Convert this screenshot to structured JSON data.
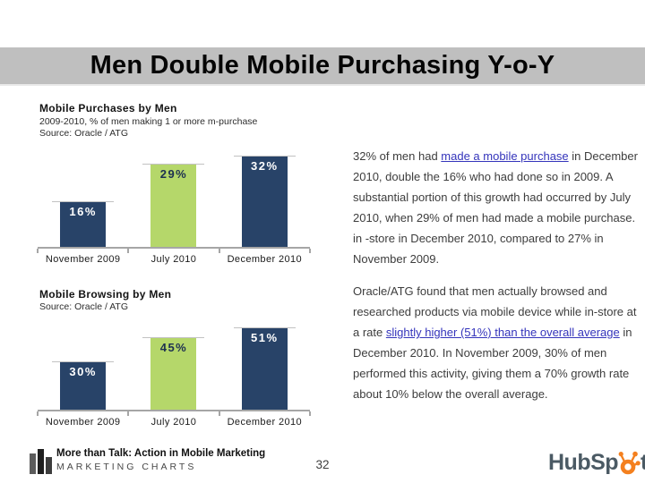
{
  "slide_title": "Men Double Mobile Purchasing Y-o-Y",
  "chart_data": [
    {
      "type": "bar",
      "title": "Mobile Purchases by Men",
      "subtitle": "2009-2010, % of men making 1 or more m-purchase",
      "source": "Source: Oracle / ATG",
      "categories": [
        "November 2009",
        "July 2010",
        "December 2010"
      ],
      "values": [
        16,
        29,
        32
      ],
      "value_labels": [
        "16%",
        "29%",
        "32%"
      ],
      "bar_colors": [
        "#284368",
        "#b5d76a",
        "#284368"
      ],
      "value_label_colors": [
        "#ffffff",
        "#1d3050",
        "#ffffff"
      ],
      "xlabel": "",
      "ylabel": "",
      "ylim": [
        0,
        37
      ],
      "grid": false,
      "legend": false
    },
    {
      "type": "bar",
      "title": "Mobile Browsing by Men",
      "subtitle": "",
      "source": "Source: Oracle / ATG",
      "categories": [
        "November 2009",
        "July 2010",
        "December 2010"
      ],
      "values": [
        30,
        45,
        51
      ],
      "value_labels": [
        "30%",
        "45%",
        "51%"
      ],
      "bar_colors": [
        "#284368",
        "#b5d76a",
        "#284368"
      ],
      "value_label_colors": [
        "#ffffff",
        "#1d3050",
        "#ffffff"
      ],
      "xlabel": "",
      "ylabel": "",
      "ylim": [
        0,
        62
      ],
      "grid": false,
      "legend": false
    }
  ],
  "commentary": {
    "para1": [
      {
        "text": "32% of men had "
      },
      {
        "text": "made a mobile purchase",
        "link": true
      },
      {
        "text": " in December 2010, double the 16% who had done so in 2009. A substantial portion of this growth had occurred by July 2010, when 29% of men had made a mobile purchase. in -store in December 2010, compared to 27% in November 2009."
      }
    ],
    "para2": [
      {
        "text": "Oracle/ATG found that men actually browsed and researched products via mobile device while in-store at a rate "
      },
      {
        "text": "slightly higher (51%) than the overall average",
        "link": true
      },
      {
        "text": " in December 2010. In November 2009, 30% of men performed this activity, giving them a 70% growth rate about 10% below the overall average."
      }
    ]
  },
  "footer": {
    "report_title": "More than Talk: Action in Mobile Marketing",
    "brand_name": "MARKETING CHARTS",
    "page_number": "32",
    "hubspot_left": "HubSp",
    "hubspot_right": "t"
  },
  "colors": {
    "navy": "#284368",
    "green": "#b5d76a",
    "title_bar_gray": "#bfbfbf",
    "axis_gray": "#a6a6a6",
    "link_blue": "#3434bb",
    "hubspot_orange": "#f4801f",
    "hubspot_slate": "#4b5a64"
  }
}
